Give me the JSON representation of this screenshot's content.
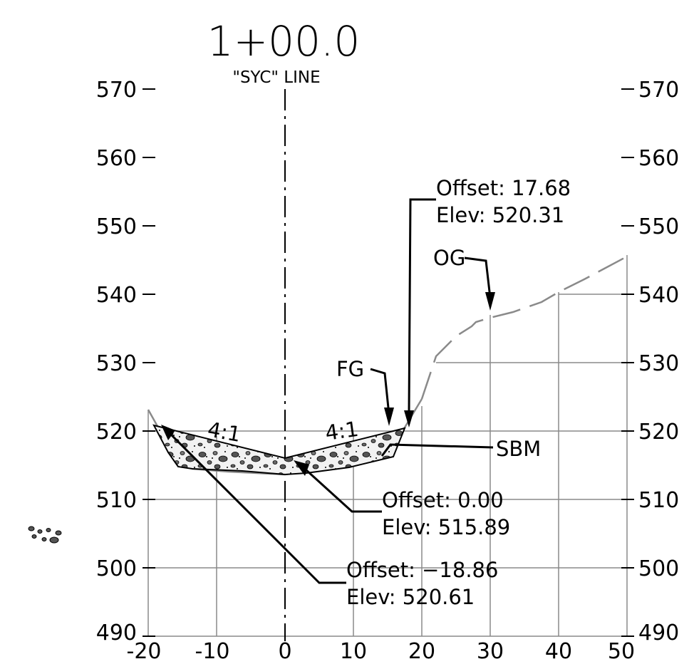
{
  "title": "1+00.0",
  "subtitle": "\"SYC\" LINE",
  "axes": {
    "x_ticks": [
      "-20",
      "-10",
      "0",
      "10",
      "20",
      "30",
      "40",
      "50"
    ],
    "y_ticks": [
      "490",
      "500",
      "510",
      "520",
      "530",
      "540",
      "550",
      "560",
      "570"
    ],
    "x_range": [
      -20,
      50
    ],
    "y_range": [
      490,
      570
    ]
  },
  "annotations": {
    "top_right": {
      "offset": "Offset: 17.68",
      "elev": "Elev: 520.31"
    },
    "center": {
      "offset": "Offset: 0.00",
      "elev": "Elev: 515.89"
    },
    "left": {
      "offset": "Offset: −18.86",
      "elev": "Elev: 520.61"
    },
    "og": "OG",
    "fg": "FG",
    "sbm": "SBM",
    "slope_left": "4:1",
    "slope_right": "4:1"
  },
  "colors": {
    "ink": "#000000",
    "grid": "#8a8a8a",
    "fill": "#eeeeee",
    "rock": "#555555"
  },
  "icons": {
    "legend": "rock-fill-swatch-icon"
  }
}
